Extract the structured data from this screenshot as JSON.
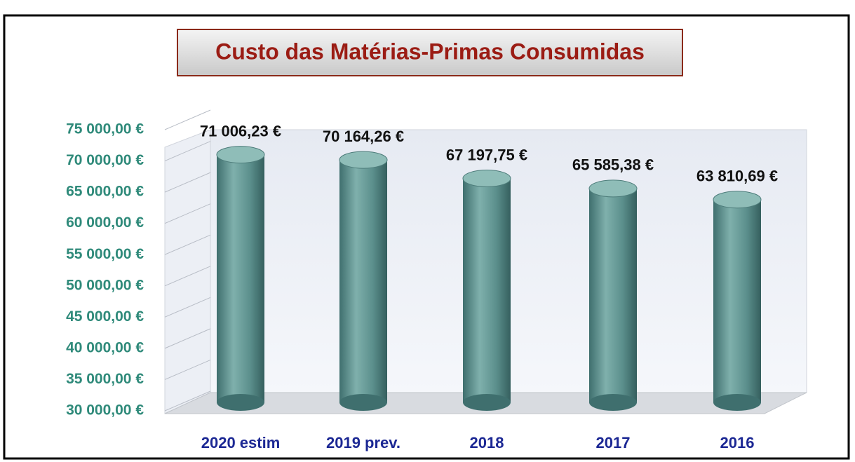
{
  "chart_data": {
    "type": "bar",
    "title": "Custo das Matérias-Primas Consumidas",
    "categories": [
      "2020 estim",
      "2019 prev.",
      "2018",
      "2017",
      "2016"
    ],
    "values": [
      71006.23,
      70164.26,
      67197.75,
      65585.38,
      63810.69
    ],
    "value_labels": [
      "71 006,23 €",
      "70 164,26 €",
      "67 197,75 €",
      "65 585,38 €",
      "63 810,69 €"
    ],
    "color": "#5b8f8c",
    "ylim": [
      30000,
      75000
    ],
    "yticks": [
      {
        "value": 30000,
        "label": "30 000,00 €"
      },
      {
        "value": 35000,
        "label": "35 000,00 €"
      },
      {
        "value": 40000,
        "label": "40 000,00 €"
      },
      {
        "value": 45000,
        "label": "45 000,00 €"
      },
      {
        "value": 50000,
        "label": "50 000,00 €"
      },
      {
        "value": 55000,
        "label": "55 000,00 €"
      },
      {
        "value": 60000,
        "label": "60 000,00 €"
      },
      {
        "value": 65000,
        "label": "65 000,00 €"
      },
      {
        "value": 70000,
        "label": "70 000,00 €"
      },
      {
        "value": 75000,
        "label": "75 000,00 €"
      }
    ],
    "grid": true
  }
}
